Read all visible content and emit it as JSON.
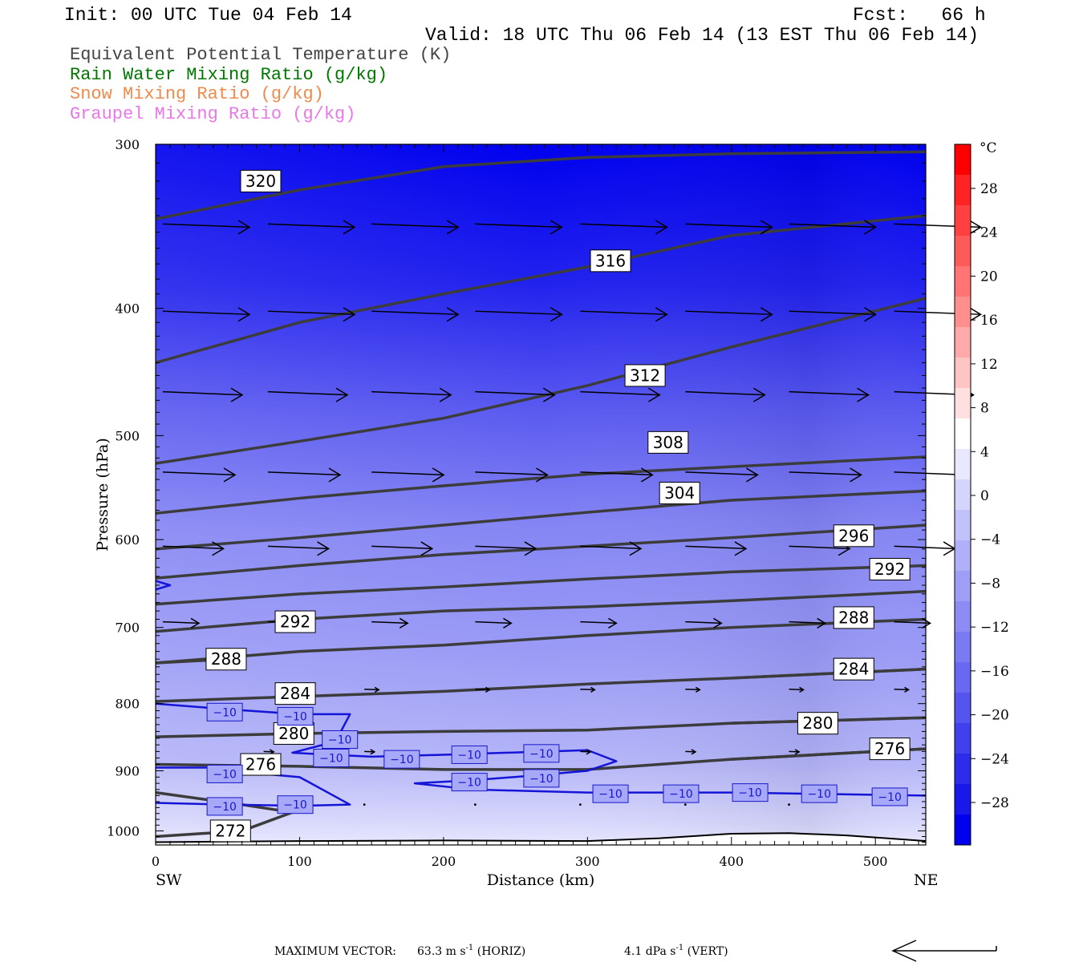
{
  "header": {
    "init": "Init: 00 UTC Tue 04 Feb 14",
    "fcst": "Fcst:   66 h",
    "valid": "Valid: 18 UTC Thu 06 Feb 14 (13 EST Thu 06 Feb 14)"
  },
  "legend": [
    {
      "text": "Equivalent Potential Temperature (K)",
      "color": "#444444"
    },
    {
      "text": "Rain Water Mixing Ratio (g/kg)",
      "color": "#007700"
    },
    {
      "text": "Snow Mixing Ratio (g/kg)",
      "color": "#f08a4b"
    },
    {
      "text": "Graupel Mixing Ratio (g/kg)",
      "color": "#e878e8"
    }
  ],
  "footer": {
    "label": "MAXIMUM VECTOR:",
    "horiz": "63.3 m s",
    "horiz_unit": "(HORIZ)",
    "vert": "4.1 dPa s",
    "vert_unit": "(VERT)",
    "exp": "-1"
  },
  "chart_data": {
    "type": "contour",
    "xlabel": "Distance (km)",
    "ylabel": "Pressure (hPa)",
    "xlim": [
      0,
      535
    ],
    "ylim": [
      300,
      1025
    ],
    "y_log": true,
    "xticks": [
      0,
      100,
      200,
      300,
      400,
      500
    ],
    "yticks": [
      300,
      400,
      500,
      600,
      700,
      800,
      900,
      1000
    ],
    "x_end_labels": {
      "left": "SW",
      "right": "NE"
    },
    "colorbar": {
      "unit": "°C",
      "labels": [
        28,
        24,
        20,
        16,
        12,
        8,
        4,
        0,
        -4,
        -8,
        -12,
        -16,
        -20,
        -24,
        -28
      ],
      "colors": [
        "#ff0000",
        "#ff2323",
        "#ff4040",
        "#ff5a5a",
        "#ff7474",
        "#ff8e8e",
        "#ffaaaa",
        "#ffc4c4",
        "#ffe0e0",
        "#ffffff",
        "#e8e8ff",
        "#d4d4fc",
        "#c2c2fa",
        "#b0b0f8",
        "#9e9ef6",
        "#8c8cf4",
        "#7a7af2",
        "#6868f0",
        "#5454ee",
        "#4040ec",
        "#2c2cea",
        "#1818ea",
        "#0000ee"
      ]
    },
    "theta_e_contours": [
      {
        "value": 320,
        "points": [
          [
            0,
            342
          ],
          [
            100,
            325
          ],
          [
            200,
            312
          ],
          [
            300,
            307
          ],
          [
            400,
            305
          ],
          [
            535,
            304
          ]
        ],
        "label_at": [
          73,
          320
        ]
      },
      {
        "value": 316,
        "points": [
          [
            0,
            440
          ],
          [
            100,
            410
          ],
          [
            200,
            390
          ],
          [
            300,
            372
          ],
          [
            400,
            352
          ],
          [
            535,
            340
          ]
        ],
        "label_at": [
          316,
          368
        ]
      },
      {
        "value": 312,
        "points": [
          [
            0,
            525
          ],
          [
            100,
            505
          ],
          [
            200,
            485
          ],
          [
            300,
            458
          ],
          [
            400,
            428
          ],
          [
            535,
            393
          ]
        ],
        "label_at": [
          340,
          450
        ]
      },
      {
        "value": 308,
        "points": [
          [
            0,
            573
          ],
          [
            100,
            558
          ],
          [
            200,
            546
          ],
          [
            300,
            535
          ],
          [
            400,
            528
          ],
          [
            535,
            519
          ]
        ],
        "label_at": [
          356,
          506
        ]
      },
      {
        "value": 304,
        "points": [
          [
            0,
            610
          ],
          [
            100,
            598
          ],
          [
            200,
            585
          ],
          [
            300,
            572
          ],
          [
            400,
            560
          ],
          [
            535,
            551
          ]
        ],
        "label_at": [
          364,
          553
        ]
      },
      {
        "value": 296,
        "points": [
          [
            0,
            642
          ],
          [
            100,
            628
          ],
          [
            200,
            616
          ],
          [
            300,
            607
          ],
          [
            400,
            598
          ],
          [
            535,
            585
          ]
        ],
        "label_at": [
          485,
          596
        ]
      },
      {
        "value": 292,
        "points": [
          [
            0,
            672
          ],
          [
            100,
            660
          ],
          [
            200,
            652
          ],
          [
            300,
            643
          ],
          [
            400,
            635
          ],
          [
            535,
            628
          ]
        ],
        "label_at": [
          510,
          632
        ]
      },
      {
        "value": 292,
        "points": [
          [
            0,
            705
          ],
          [
            100,
            690
          ],
          [
            200,
            680
          ],
          [
            300,
            675
          ],
          [
            400,
            668
          ],
          [
            535,
            657
          ]
        ],
        "label_at": [
          97,
          693
        ]
      },
      {
        "value": 288,
        "points": [
          [
            0,
            745
          ],
          [
            100,
            730
          ],
          [
            200,
            722
          ],
          [
            300,
            710
          ],
          [
            400,
            700
          ],
          [
            535,
            690
          ]
        ],
        "label_at": [
          485,
          688
        ]
      },
      {
        "value": 288,
        "points": [
          [
            0,
            745
          ],
          [
            50,
            740
          ]
        ],
        "label_at": [
          49,
          740
        ]
      },
      {
        "value": 284,
        "points": [
          [
            0,
            797
          ],
          [
            100,
            790
          ],
          [
            200,
            783
          ],
          [
            300,
            773
          ],
          [
            400,
            765
          ],
          [
            535,
            753
          ]
        ],
        "label_at": [
          97,
          786
        ]
      },
      {
        "value": 284,
        "points": [
          [
            400,
            765
          ],
          [
            535,
            753
          ]
        ],
        "label_at": [
          485,
          753
        ]
      },
      {
        "value": 280,
        "points": [
          [
            0,
            848
          ],
          [
            100,
            843
          ],
          [
            200,
            840
          ],
          [
            300,
            838
          ],
          [
            400,
            828
          ],
          [
            535,
            820
          ]
        ],
        "label_at": [
          96,
          843
        ]
      },
      {
        "value": 280,
        "points": [
          [
            400,
            828
          ],
          [
            535,
            820
          ]
        ],
        "label_at": [
          460,
          828
        ]
      },
      {
        "value": 276,
        "points": [
          [
            0,
            890
          ],
          [
            100,
            893
          ],
          [
            200,
            898
          ],
          [
            300,
            898
          ],
          [
            400,
            882
          ],
          [
            535,
            866
          ]
        ],
        "label_at": [
          73,
          890
        ]
      },
      {
        "value": 276,
        "points": [
          [
            400,
            882
          ],
          [
            535,
            866
          ]
        ],
        "label_at": [
          510,
          866
        ]
      },
      {
        "value": 272,
        "points": [
          [
            0,
            1010
          ],
          [
            60,
            1000
          ],
          [
            95,
            968
          ],
          [
            60,
            955
          ],
          [
            0,
            935
          ]
        ],
        "label_at": [
          52,
          1000
        ]
      }
    ],
    "temperature_contours": [
      {
        "value": -10,
        "points": [
          [
            0,
            800
          ],
          [
            50,
            808
          ],
          [
            100,
            815
          ],
          [
            135,
            815
          ],
          [
            125,
            855
          ],
          [
            95,
            872
          ],
          [
            150,
            878
          ],
          [
            200,
            875
          ],
          [
            300,
            868
          ],
          [
            320,
            885
          ],
          [
            300,
            900
          ],
          [
            260,
            908
          ],
          [
            220,
            915
          ],
          [
            180,
            920
          ],
          [
            220,
            930
          ],
          [
            300,
            935
          ],
          [
            400,
            935
          ],
          [
            535,
            940
          ]
        ]
      },
      {
        "value": -10,
        "points": [
          [
            0,
            895
          ],
          [
            35,
            895
          ],
          [
            75,
            905
          ],
          [
            100,
            910
          ],
          [
            135,
            955
          ],
          [
            100,
            957
          ],
          [
            50,
            955
          ],
          [
            0,
            952
          ]
        ]
      },
      {
        "value": -10,
        "points": [
          [
            0,
            655
          ],
          [
            10,
            650
          ],
          [
            0,
            645
          ]
        ]
      }
    ],
    "temperature_labels": [
      {
        "text": "-10",
        "at": [
          48,
          812
        ]
      },
      {
        "text": "-10",
        "at": [
          97,
          818
        ]
      },
      {
        "text": "-10",
        "at": [
          128,
          852
        ]
      },
      {
        "text": "-10",
        "at": [
          122,
          880
        ]
      },
      {
        "text": "-10",
        "at": [
          171,
          882
        ]
      },
      {
        "text": "-10",
        "at": [
          218,
          875
        ]
      },
      {
        "text": "-10",
        "at": [
          268,
          873
        ]
      },
      {
        "text": "-10",
        "at": [
          48,
          905
        ]
      },
      {
        "text": "-10",
        "at": [
          218,
          918
        ]
      },
      {
        "text": "-10",
        "at": [
          268,
          912
        ]
      },
      {
        "text": "-10",
        "at": [
          316,
          937
        ]
      },
      {
        "text": "-10",
        "at": [
          365,
          937
        ]
      },
      {
        "text": "-10",
        "at": [
          413,
          935
        ]
      },
      {
        "text": "-10",
        "at": [
          461,
          937
        ]
      },
      {
        "text": "-10",
        "at": [
          510,
          942
        ]
      },
      {
        "text": "-10",
        "at": [
          48,
          958
        ]
      },
      {
        "text": "-10",
        "at": [
          97,
          955
        ]
      }
    ],
    "surface_line": [
      [
        0,
        1020
      ],
      [
        100,
        1018
      ],
      [
        200,
        1017
      ],
      [
        300,
        1018
      ],
      [
        350,
        1013
      ],
      [
        400,
        1005
      ],
      [
        440,
        1004
      ],
      [
        480,
        1008
      ],
      [
        535,
        1018
      ]
    ],
    "wind_rows": [
      {
        "p": 345,
        "x": [
          5,
          78,
          150,
          222,
          295,
          368,
          440,
          513
        ],
        "u": 60
      },
      {
        "p": 402,
        "x": [
          5,
          78,
          150,
          222,
          295,
          368,
          440,
          513
        ],
        "u": 60
      },
      {
        "p": 463,
        "x": [
          5,
          78,
          150,
          222,
          295,
          368,
          440,
          513
        ],
        "u": 55
      },
      {
        "p": 533,
        "x": [
          5,
          78,
          150,
          222,
          295,
          368,
          440,
          513
        ],
        "u": 50
      },
      {
        "p": 607,
        "x": [
          5,
          78,
          150,
          222,
          295,
          368,
          440,
          513
        ],
        "u": 42
      },
      {
        "p": 693,
        "x": [
          5,
          78,
          150,
          222,
          295,
          368,
          440,
          513
        ],
        "u": 25
      },
      {
        "p": 780,
        "x": [
          145,
          222,
          295,
          368,
          440,
          513
        ],
        "u": 10
      },
      {
        "p": 870,
        "x": [
          75,
          145,
          222,
          295,
          368,
          440
        ],
        "u": 7
      },
      {
        "p": 955,
        "x": [
          145,
          222,
          295,
          368,
          440
        ],
        "u": 1
      }
    ]
  }
}
